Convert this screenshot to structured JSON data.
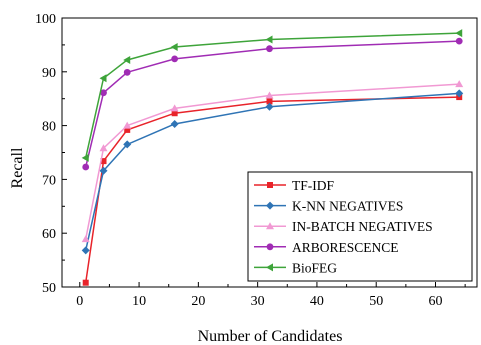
{
  "chart_data": {
    "type": "line",
    "title": "",
    "xlabel": "Number of Candidates",
    "ylabel": "Recall",
    "xlim": [
      -3,
      67
    ],
    "ylim": [
      50,
      100
    ],
    "xticks": [
      0,
      10,
      20,
      30,
      40,
      50,
      60
    ],
    "yticks": [
      50,
      60,
      70,
      80,
      90,
      100
    ],
    "grid": false,
    "legend_position": "bottom-right",
    "x": [
      1,
      4,
      8,
      16,
      32,
      64
    ],
    "series": [
      {
        "name": "TF-IDF",
        "color": "#e8232a",
        "marker": "square",
        "values": [
          50.8,
          73.4,
          79.2,
          82.3,
          84.5,
          85.3
        ]
      },
      {
        "name": "K-NN NEGATIVES",
        "color": "#2f74b5",
        "marker": "diamond",
        "values": [
          56.8,
          71.6,
          76.5,
          80.3,
          83.5,
          86.0
        ]
      },
      {
        "name": "IN-BATCH NEGATIVES",
        "color": "#f199d3",
        "marker": "triangle-up",
        "values": [
          58.9,
          75.8,
          80.0,
          83.2,
          85.6,
          87.7
        ]
      },
      {
        "name": "ARBORESCENCE",
        "color": "#a02cb4",
        "marker": "circle",
        "values": [
          72.3,
          86.1,
          89.9,
          92.4,
          94.3,
          95.7
        ]
      },
      {
        "name": "BioFEG",
        "color": "#3ea43a",
        "marker": "triangle-left",
        "values": [
          74.0,
          88.8,
          92.2,
          94.6,
          96.0,
          97.2
        ]
      }
    ]
  }
}
